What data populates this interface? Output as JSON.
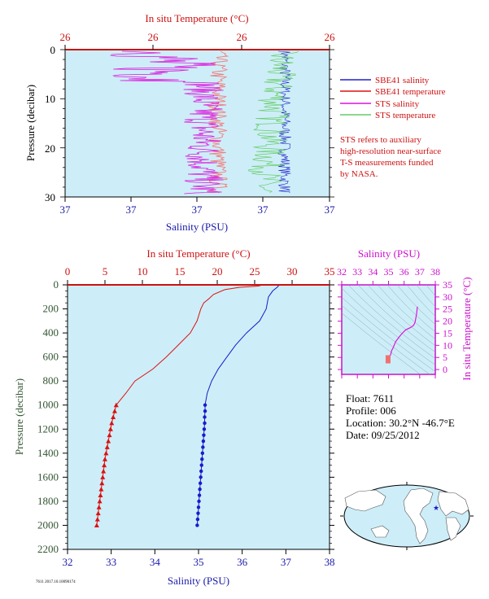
{
  "top_chart": {
    "top_axis_label": "In situ Temperature (°C)",
    "bottom_axis_label": "Salinity (PSU)",
    "left_axis_label": "Pressure (decibar)",
    "top_ticks": [
      "26",
      "26",
      "26",
      "26"
    ],
    "bottom_ticks": [
      "37",
      "37",
      "37",
      "37",
      "37"
    ],
    "left_ticks": [
      "0",
      "10",
      "20",
      "30"
    ],
    "legend": [
      {
        "label": "SBE41 salinity",
        "color": "#2222cc"
      },
      {
        "label": "SBE41 temperature",
        "color": "#dd1111"
      },
      {
        "label": "STS salinity",
        "color": "#dd11dd"
      },
      {
        "label": "STS temperature",
        "color": "#66cc66"
      }
    ],
    "note": [
      "STS refers to auxiliary",
      "high-resolution near-surface",
      "T-S measurements funded",
      "by NASA."
    ]
  },
  "main_chart": {
    "top_axis_label": "In situ Temperature (°C)",
    "bottom_axis_label": "Salinity (PSU)",
    "left_axis_label": "Pressure (decibar)"
  },
  "ts_chart": {
    "top_axis_label": "Salinity (PSU)",
    "right_axis_label": "In situ Temperature (°C)"
  },
  "float_info": {
    "float": "Float: 7611",
    "profile": "Profile: 006",
    "location": "Location: 30.2°N -46.7°E",
    "date": "Date: 09/25/2012"
  },
  "footer_note": "7611 2017.10.10090174",
  "colors": {
    "panel_bg": "#cdeef8",
    "temperature": "#dd1111",
    "salinity": "#1a1acc",
    "sts_salinity": "#dd11dd",
    "sts_temperature": "#66cc66",
    "ts_frame": "#cc11cc"
  },
  "chart_data": [
    {
      "type": "line",
      "x_top": {
        "label": "In situ Temperature (°C)",
        "range": [
          0,
          35
        ],
        "ticks": [
          0,
          5,
          10,
          15,
          20,
          25,
          30,
          35
        ]
      },
      "x_bottom": {
        "label": "Salinity (PSU)",
        "range": [
          32,
          38
        ],
        "ticks": [
          32,
          33,
          34,
          35,
          36,
          37,
          38
        ]
      },
      "y": {
        "label": "Pressure (decibar)",
        "range": [
          0,
          2200
        ],
        "ticks": [
          0,
          200,
          400,
          600,
          800,
          1000,
          1200,
          1400,
          1600,
          1800,
          2000,
          2200
        ],
        "inverted": true
      },
      "series": [
        {
          "variable": "temperature",
          "pressure": [
            0,
            10,
            20,
            40,
            80,
            120,
            150,
            200,
            300,
            400,
            500,
            600,
            700,
            800,
            900,
            1000
          ],
          "values": [
            26.0,
            25.5,
            23.0,
            21.0,
            19.5,
            18.8,
            18.2,
            17.8,
            17.3,
            16.4,
            14.8,
            13.2,
            11.4,
            9.0,
            7.8,
            6.5
          ]
        },
        {
          "variable": "salinity",
          "pressure": [
            0,
            20,
            50,
            100,
            200,
            300,
            400,
            500,
            600,
            700,
            800,
            900,
            1000
          ],
          "values": [
            36.85,
            36.8,
            36.7,
            36.6,
            36.55,
            36.4,
            36.1,
            35.85,
            35.65,
            35.45,
            35.3,
            35.2,
            35.15
          ]
        },
        {
          "variable": "temperature",
          "markers": "triangle",
          "pressure": [
            1000,
            1050,
            1100,
            1150,
            1200,
            1250,
            1300,
            1350,
            1400,
            1450,
            1500,
            1550,
            1600,
            1650,
            1700,
            1750,
            1800,
            1850,
            1900,
            1950,
            2000
          ],
          "values": [
            6.5,
            6.3,
            6.1,
            5.9,
            5.75,
            5.6,
            5.45,
            5.3,
            5.15,
            5.0,
            4.9,
            4.8,
            4.7,
            4.6,
            4.5,
            4.4,
            4.3,
            4.2,
            4.1,
            4.0,
            3.9
          ]
        },
        {
          "variable": "salinity",
          "markers": "dot",
          "pressure": [
            1000,
            1050,
            1100,
            1150,
            1200,
            1250,
            1300,
            1350,
            1400,
            1450,
            1500,
            1550,
            1600,
            1650,
            1700,
            1750,
            1800,
            1850,
            1900,
            1950,
            2000
          ],
          "values": [
            35.15,
            35.15,
            35.14,
            35.14,
            35.13,
            35.12,
            35.11,
            35.1,
            35.09,
            35.08,
            35.07,
            35.06,
            35.05,
            35.04,
            35.03,
            35.02,
            35.01,
            35.0,
            34.99,
            34.98,
            34.97
          ]
        }
      ]
    },
    {
      "type": "scatter",
      "x": {
        "label": "Salinity (PSU)",
        "range": [
          32,
          38
        ],
        "ticks": [
          32,
          33,
          34,
          35,
          36,
          37,
          38
        ]
      },
      "y": {
        "label": "In situ Temperature (°C)",
        "range": [
          -2,
          35
        ],
        "ticks": [
          0,
          5,
          10,
          15,
          20,
          25,
          30,
          35
        ]
      },
      "ts_curve": {
        "salinity": [
          36.85,
          36.8,
          36.7,
          36.6,
          36.4,
          36.1,
          35.85,
          35.65,
          35.45,
          35.3,
          35.2,
          35.15,
          35.1,
          35.05,
          35.0,
          34.97
        ],
        "temperature": [
          26.0,
          23.0,
          19.5,
          18.2,
          17.3,
          16.4,
          14.8,
          13.2,
          11.4,
          9.0,
          7.8,
          6.5,
          5.6,
          4.8,
          4.3,
          3.9
        ]
      }
    }
  ]
}
